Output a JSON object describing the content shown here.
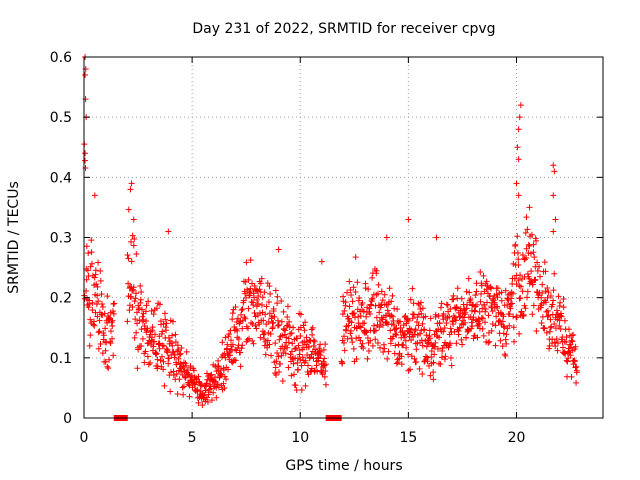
{
  "chart_data": {
    "type": "scatter",
    "title": "Day 231 of 2022, SRMTID for receiver cpvg",
    "xlabel": "GPS time / hours",
    "ylabel": "SRMTID / TECUs",
    "xlim": [
      0,
      24
    ],
    "ylim": [
      0,
      0.6
    ],
    "x_ticks": [
      0,
      5,
      10,
      15,
      20
    ],
    "x_tick_labels": [
      "0",
      "5",
      "10",
      "15",
      "20"
    ],
    "y_ticks": [
      0,
      0.1,
      0.2,
      0.3,
      0.4,
      0.5,
      0.6
    ],
    "y_tick_labels": [
      "0",
      "0.1",
      "0.2",
      "0.3",
      "0.4",
      "0.5",
      "0.6"
    ],
    "grid": true,
    "marker": "plus",
    "color": "#ff0000",
    "series": [
      {
        "name": "SRMTID",
        "envelope": {
          "x": [
            0,
            0.1,
            0.3,
            0.5,
            0.8,
            1.0,
            1.3,
            1.6,
            2.0,
            2.3,
            2.6,
            3.0,
            3.5,
            4.0,
            4.5,
            5.0,
            5.5,
            6.0,
            6.5,
            7.0,
            7.5,
            8.0,
            8.5,
            9.0,
            9.5,
            10.0,
            10.5,
            11.0,
            11.5,
            12.0,
            12.5,
            13.0,
            13.5,
            14.0,
            14.5,
            15.0,
            15.5,
            16.0,
            16.5,
            17.0,
            17.5,
            18.0,
            18.5,
            19.0,
            19.5,
            20.0,
            20.3,
            20.6,
            21.0,
            21.5,
            22.0,
            22.5,
            22.8
          ],
          "y": [
            0.4,
            0.22,
            0.2,
            0.22,
            0.17,
            0.12,
            0.16,
            0.18,
            0.24,
            0.2,
            0.16,
            0.14,
            0.13,
            0.12,
            0.08,
            0.06,
            0.04,
            0.06,
            0.09,
            0.14,
            0.18,
            0.19,
            0.16,
            0.14,
            0.12,
            0.11,
            0.12,
            0.09,
            0.08,
            0.15,
            0.17,
            0.16,
            0.18,
            0.16,
            0.13,
            0.14,
            0.15,
            0.12,
            0.14,
            0.15,
            0.17,
            0.18,
            0.19,
            0.17,
            0.16,
            0.24,
            0.22,
            0.25,
            0.22,
            0.18,
            0.15,
            0.11,
            0.09
          ],
          "spread": [
            0.18,
            0.1,
            0.09,
            0.09,
            0.07,
            0.05,
            0.07,
            0.07,
            0.1,
            0.08,
            0.07,
            0.06,
            0.06,
            0.06,
            0.04,
            0.03,
            0.02,
            0.03,
            0.04,
            0.05,
            0.06,
            0.06,
            0.06,
            0.06,
            0.05,
            0.05,
            0.05,
            0.04,
            0.04,
            0.06,
            0.07,
            0.06,
            0.07,
            0.07,
            0.05,
            0.05,
            0.06,
            0.05,
            0.05,
            0.05,
            0.05,
            0.05,
            0.05,
            0.05,
            0.05,
            0.08,
            0.09,
            0.08,
            0.08,
            0.07,
            0.05,
            0.04,
            0.03
          ]
        },
        "peaks": [
          {
            "x": 0.05,
            "y": 0.6
          },
          {
            "x": 0.08,
            "y": 0.58
          },
          {
            "x": 0.05,
            "y": 0.57
          },
          {
            "x": 0.07,
            "y": 0.53
          },
          {
            "x": 0.1,
            "y": 0.5
          },
          {
            "x": 0.05,
            "y": 0.44
          },
          {
            "x": 0.5,
            "y": 0.37
          },
          {
            "x": 2.2,
            "y": 0.39
          },
          {
            "x": 2.15,
            "y": 0.38
          },
          {
            "x": 2.3,
            "y": 0.33
          },
          {
            "x": 3.9,
            "y": 0.31
          },
          {
            "x": 9.0,
            "y": 0.28
          },
          {
            "x": 11.0,
            "y": 0.26
          },
          {
            "x": 14.0,
            "y": 0.3
          },
          {
            "x": 15.0,
            "y": 0.33
          },
          {
            "x": 16.3,
            "y": 0.3
          },
          {
            "x": 20.2,
            "y": 0.52
          },
          {
            "x": 20.15,
            "y": 0.5
          },
          {
            "x": 20.1,
            "y": 0.48
          },
          {
            "x": 20.05,
            "y": 0.45
          },
          {
            "x": 20.1,
            "y": 0.43
          },
          {
            "x": 20.0,
            "y": 0.39
          },
          {
            "x": 20.1,
            "y": 0.37
          },
          {
            "x": 20.6,
            "y": 0.35
          },
          {
            "x": 21.7,
            "y": 0.42
          },
          {
            "x": 21.75,
            "y": 0.41
          },
          {
            "x": 21.7,
            "y": 0.37
          },
          {
            "x": 21.8,
            "y": 0.33
          },
          {
            "x": 21.7,
            "y": 0.31
          }
        ],
        "flags": [
          {
            "x_start": 1.4,
            "x_end": 2.0,
            "y": 0.0
          },
          {
            "x_start": 11.2,
            "x_end": 11.9,
            "y": 0.0
          }
        ]
      }
    ]
  }
}
